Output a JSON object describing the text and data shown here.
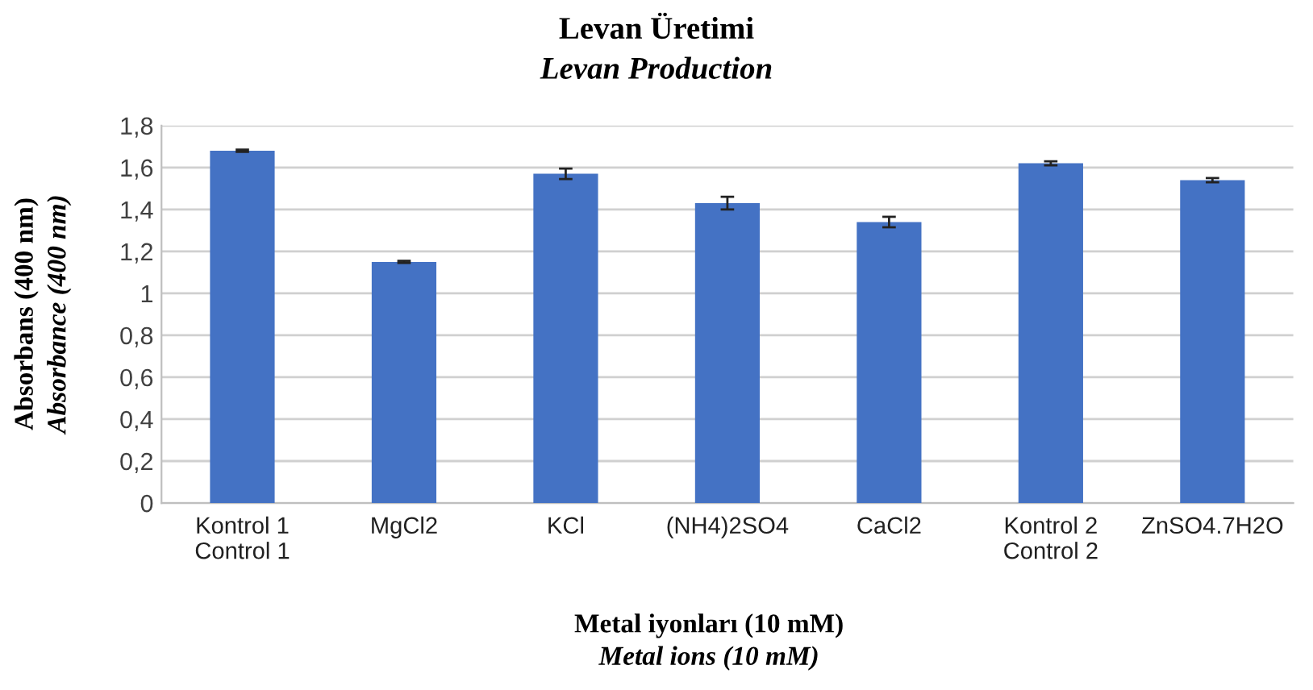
{
  "chart_data": {
    "type": "bar",
    "title": "Levan Üretimi",
    "subtitle": "Levan Production",
    "xlabel": "Metal iyonları (10 mM)\nMetal ions (10 mM)",
    "ylabel": "Absorbans (400 nm)\nAbsorbance (400 nm)",
    "categories": [
      "Kontrol 1\nControl 1",
      "MgCl2",
      "KCl",
      "(NH4)2SO4",
      "CaCl2",
      "Kontrol 2\nControl 2",
      "ZnSO4.7H2O"
    ],
    "values": [
      1.68,
      1.15,
      1.57,
      1.43,
      1.34,
      1.62,
      1.54
    ],
    "errors": [
      0.005,
      0.005,
      0.025,
      0.03,
      0.025,
      0.01,
      0.01
    ],
    "color": "#4472c4",
    "ylim": [
      0,
      1.8
    ],
    "yticks": [
      0,
      {
        "value": 0.2,
        "label": "0,2"
      },
      {
        "value": 0.4,
        "label": "0,4"
      },
      {
        "value": 0.6,
        "label": "0,6"
      },
      {
        "value": 0.8,
        "label": "0,8"
      },
      1,
      {
        "value": 1.2,
        "label": "1,2"
      },
      {
        "value": 1.4,
        "label": "1,4"
      },
      {
        "value": 1.6,
        "label": "1,6"
      },
      {
        "value": 1.8,
        "label": "1,8"
      }
    ],
    "grid": "y",
    "legend": false
  }
}
